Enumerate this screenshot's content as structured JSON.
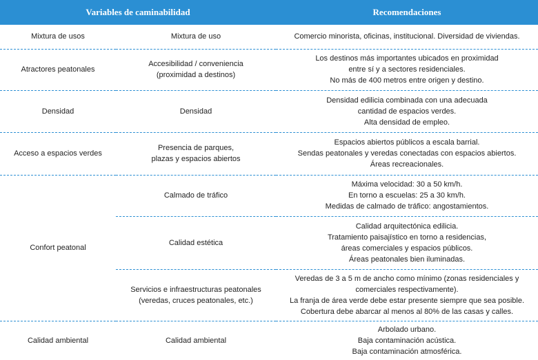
{
  "header": {
    "titles": [
      "Variables de caminabilidad",
      "Recomendaciones"
    ]
  },
  "rows": [
    {
      "variable": "Mixtura de usos",
      "items": [
        {
          "name": [
            "Mixtura de uso"
          ],
          "recommendations": [
            "Comercio minorista, oficinas, institucional. Diversidad de viviendas."
          ]
        }
      ]
    },
    {
      "variable": "Atractores peatonales",
      "items": [
        {
          "name": [
            "Accesibilidad / conveniencia",
            "(proximidad a destinos)"
          ],
          "recommendations": [
            "Los destinos más importantes ubicados en proximidad",
            "entre sí y a sectores residenciales.",
            "No más de 400 metros entre origen y destino."
          ]
        }
      ]
    },
    {
      "variable": "Densidad",
      "items": [
        {
          "name": [
            "Densidad"
          ],
          "recommendations": [
            "Densidad edilicia combinada con una adecuada",
            "cantidad de espacios verdes.",
            "Alta densidad de empleo."
          ]
        }
      ]
    },
    {
      "variable": "Acceso a espacios verdes",
      "items": [
        {
          "name": [
            "Presencia de parques,",
            "plazas y espacios abiertos"
          ],
          "recommendations": [
            "Espacios abiertos públicos a escala barrial.",
            "Sendas peatonales y veredas conectadas con espacios abiertos.",
            "Áreas recreacionales."
          ]
        }
      ]
    },
    {
      "variable": "Confort peatonal",
      "items": [
        {
          "name": [
            "Calmado de tráfico"
          ],
          "recommendations": [
            "Máxima velocidad: 30 a 50 km/h.",
            "En torno a escuelas: 25 a 30 km/h.",
            "Medidas de calmado de tráfico: angostamientos."
          ]
        },
        {
          "name": [
            "Calidad estética"
          ],
          "recommendations": [
            "Calidad arquitectónica edilicia.",
            "Tratamiento paisajístico en torno a residencias,",
            "áreas comerciales y espacios públicos.",
            "Áreas peatonales bien iluminadas."
          ]
        },
        {
          "name": [
            "Servicios e infraestructuras peatonales",
            "(veredas, cruces peatonales, etc.)"
          ],
          "recommendations": [
            "Veredas de 3 a 5 m de ancho como mínimo (zonas residenciales y",
            "comerciales respectivamente).",
            "La franja de área verde debe estar presente siempre que sea posible.",
            "Cobertura debe abarcar al menos al 80% de las casas y calles."
          ]
        }
      ]
    },
    {
      "variable": "Calidad ambiental",
      "items": [
        {
          "name": [
            "Calidad ambiental"
          ],
          "recommendations": [
            "Arbolado urbano.",
            "Baja contaminación acústica.",
            "Baja contaminación atmosférica."
          ]
        }
      ]
    }
  ]
}
